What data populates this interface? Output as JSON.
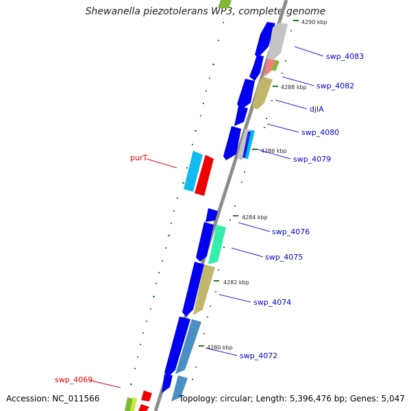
{
  "title": "Shewanella piezotolerans WP3, complete genome",
  "accession_label": "Accession: NC_011566",
  "summary_label": "Topology: circular; Length: 5,396,476 bp; Genes: 5,047",
  "colors": {
    "backbone": "#8c8c8c",
    "forward_gene": "#0000ee",
    "label_forward": "#0000cc",
    "label_reverse": "#dd0000",
    "tick": "#2a8a2a"
  },
  "ticks": [
    {
      "label": "4290 kbp",
      "kbp": 4290
    },
    {
      "label": "4288 kbp",
      "kbp": 4288
    },
    {
      "label": "4286 kbp",
      "kbp": 4286
    },
    {
      "label": "4284 kbp",
      "kbp": 4284
    },
    {
      "label": "4282 kbp",
      "kbp": 4282
    },
    {
      "label": "4280 kbp",
      "kbp": 4280
    }
  ],
  "labels": [
    {
      "text": "swp_4083",
      "strand": "forward"
    },
    {
      "text": "swp_4082",
      "strand": "forward"
    },
    {
      "text": "djlA",
      "strand": "forward"
    },
    {
      "text": "swp_4080",
      "strand": "forward"
    },
    {
      "text": "swp_4079",
      "strand": "forward"
    },
    {
      "text": "swp_4076",
      "strand": "forward"
    },
    {
      "text": "swp_4075",
      "strand": "forward"
    },
    {
      "text": "swp_4074",
      "strand": "forward"
    },
    {
      "text": "swp_4072",
      "strand": "forward"
    },
    {
      "text": "purT",
      "strand": "reverse"
    },
    {
      "text": "swp_4069",
      "strand": "reverse"
    }
  ]
}
